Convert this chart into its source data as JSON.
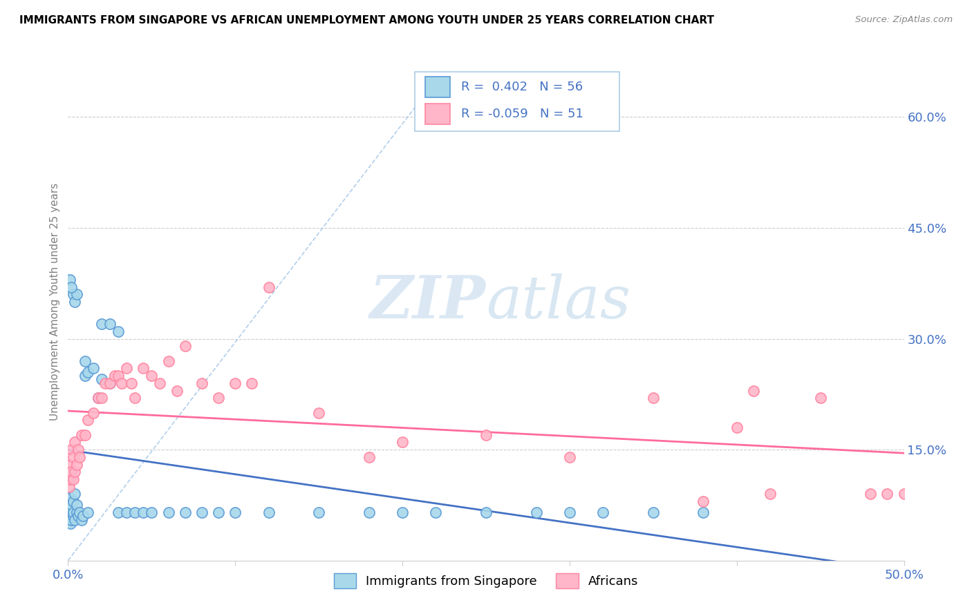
{
  "title": "IMMIGRANTS FROM SINGAPORE VS AFRICAN UNEMPLOYMENT AMONG YOUTH UNDER 25 YEARS CORRELATION CHART",
  "source": "Source: ZipAtlas.com",
  "ylabel": "Unemployment Among Youth under 25 years",
  "xlim": [
    0,
    0.5
  ],
  "ylim": [
    0,
    0.7
  ],
  "x_tick_positions": [
    0.0,
    0.1,
    0.2,
    0.3,
    0.4,
    0.5
  ],
  "x_tick_labels": [
    "0.0%",
    "",
    "",
    "",
    "",
    "50.0%"
  ],
  "y_ticks_right": [
    0.15,
    0.3,
    0.45,
    0.6
  ],
  "y_tick_labels_right": [
    "15.0%",
    "30.0%",
    "45.0%",
    "60.0%"
  ],
  "legend_r1": "R =  0.402",
  "legend_n1": "N = 56",
  "legend_r2": "R = -0.059",
  "legend_n2": "N = 51",
  "blue_scatter_color": "#A8D8EA",
  "blue_edge_color": "#5B9BD5",
  "pink_scatter_color": "#FFB6C8",
  "pink_edge_color": "#FF85A1",
  "blue_line_color": "#4472C4",
  "pink_line_color": "#FF6B9D",
  "axis_label_color": "#4472C4",
  "grid_color": "#CCCCCC",
  "watermark_color": "#CCDFF0",
  "dashed_line_color": "#9DC3E6",
  "blue_points_x": [
    0.0005,
    0.0008,
    0.001,
    0.001,
    0.0015,
    0.002,
    0.002,
    0.002,
    0.003,
    0.003,
    0.003,
    0.004,
    0.004,
    0.005,
    0.005,
    0.006,
    0.007,
    0.008,
    0.009,
    0.01,
    0.01,
    0.012,
    0.012,
    0.015,
    0.018,
    0.02,
    0.025,
    0.03,
    0.035,
    0.04,
    0.045,
    0.05,
    0.06,
    0.07,
    0.08,
    0.09,
    0.1,
    0.12,
    0.15,
    0.18,
    0.2,
    0.22,
    0.25,
    0.28,
    0.3,
    0.32,
    0.35,
    0.38,
    0.02,
    0.025,
    0.03,
    0.003,
    0.004,
    0.005,
    0.001,
    0.002
  ],
  "blue_points_y": [
    0.055,
    0.06,
    0.065,
    0.085,
    0.05,
    0.055,
    0.07,
    0.075,
    0.06,
    0.065,
    0.08,
    0.055,
    0.09,
    0.065,
    0.075,
    0.06,
    0.065,
    0.055,
    0.06,
    0.25,
    0.27,
    0.255,
    0.065,
    0.26,
    0.22,
    0.245,
    0.24,
    0.065,
    0.065,
    0.065,
    0.065,
    0.065,
    0.065,
    0.065,
    0.065,
    0.065,
    0.065,
    0.065,
    0.065,
    0.065,
    0.065,
    0.065,
    0.065,
    0.065,
    0.065,
    0.065,
    0.065,
    0.065,
    0.32,
    0.32,
    0.31,
    0.36,
    0.35,
    0.36,
    0.38,
    0.37
  ],
  "pink_points_x": [
    0.0005,
    0.001,
    0.001,
    0.002,
    0.002,
    0.003,
    0.003,
    0.004,
    0.004,
    0.005,
    0.006,
    0.007,
    0.008,
    0.01,
    0.012,
    0.015,
    0.018,
    0.02,
    0.022,
    0.025,
    0.028,
    0.03,
    0.032,
    0.035,
    0.038,
    0.04,
    0.045,
    0.05,
    0.055,
    0.06,
    0.065,
    0.07,
    0.08,
    0.09,
    0.1,
    0.11,
    0.12,
    0.15,
    0.18,
    0.2,
    0.25,
    0.3,
    0.35,
    0.38,
    0.42,
    0.45,
    0.48,
    0.49,
    0.5,
    0.4,
    0.41
  ],
  "pink_points_y": [
    0.1,
    0.11,
    0.13,
    0.12,
    0.15,
    0.11,
    0.14,
    0.12,
    0.16,
    0.13,
    0.15,
    0.14,
    0.17,
    0.17,
    0.19,
    0.2,
    0.22,
    0.22,
    0.24,
    0.24,
    0.25,
    0.25,
    0.24,
    0.26,
    0.24,
    0.22,
    0.26,
    0.25,
    0.24,
    0.27,
    0.23,
    0.29,
    0.24,
    0.22,
    0.24,
    0.24,
    0.37,
    0.2,
    0.14,
    0.16,
    0.17,
    0.14,
    0.22,
    0.08,
    0.09,
    0.22,
    0.09,
    0.09,
    0.09,
    0.18,
    0.23
  ]
}
